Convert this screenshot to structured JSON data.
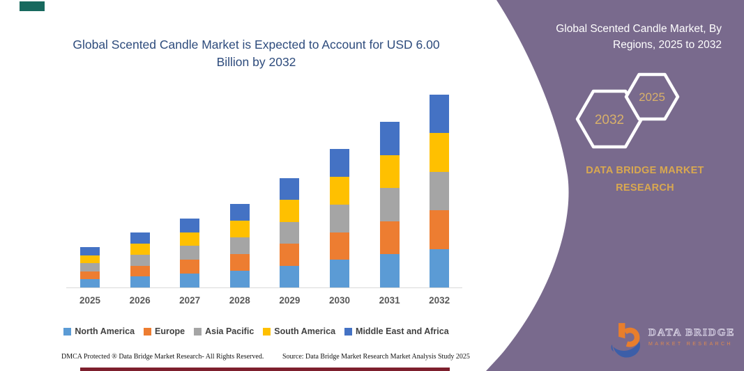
{
  "header": {
    "title": "Global Scented Candle Market is Expected to Account for USD 6.00 Billion by 2032"
  },
  "chart_data": {
    "type": "bar",
    "stacked": true,
    "title": "Global Scented Candle Market is Expected to Account for USD 6.00 Billion by 2032",
    "unit": "USD Billion",
    "categories": [
      "2025",
      "2026",
      "2027",
      "2028",
      "2029",
      "2030",
      "2031",
      "2032"
    ],
    "series": [
      {
        "name": "North America",
        "color": "#5B9BD5",
        "values": [
          0.25,
          0.34,
          0.43,
          0.52,
          0.68,
          0.86,
          1.03,
          1.2
        ]
      },
      {
        "name": "Europe",
        "color": "#ED7D31",
        "values": [
          0.25,
          0.34,
          0.43,
          0.52,
          0.68,
          0.86,
          1.03,
          1.2
        ]
      },
      {
        "name": "Asia Pacific",
        "color": "#A5A5A5",
        "values": [
          0.25,
          0.34,
          0.43,
          0.52,
          0.68,
          0.86,
          1.03,
          1.2
        ]
      },
      {
        "name": "South America",
        "color": "#FFC000",
        "values": [
          0.25,
          0.34,
          0.43,
          0.52,
          0.68,
          0.86,
          1.03,
          1.2
        ]
      },
      {
        "name": "Middle East and Africa",
        "color": "#4472C4",
        "values": [
          0.25,
          0.34,
          0.43,
          0.52,
          0.68,
          0.86,
          1.03,
          1.2
        ]
      }
    ],
    "totals": [
      1.25,
      1.7,
      2.15,
      2.6,
      3.4,
      4.3,
      5.15,
      6.0
    ],
    "ylim": [
      0,
      6.5
    ],
    "y_axis_visible": false,
    "gridlines": false,
    "legend_position": "bottom"
  },
  "side_panel": {
    "title": "Global Scented Candle Market, By Regions, 2025 to 2032",
    "hexagon_back_label": "2032",
    "hexagon_front_label": "2025",
    "brand_line1": "DATA BRIDGE MARKET",
    "brand_line2": "RESEARCH",
    "logo_name": "DATA BRIDGE",
    "logo_subtitle": "MARKET RESEARCH",
    "colors": {
      "background": "#796A8D",
      "gold": "#D9A850",
      "hexagon_text": "#D8B06A"
    }
  },
  "footer": {
    "dmca": "DMCA Protected ® Data Bridge Market Research-  All Rights Reserved.",
    "source": "Source: Data Bridge Market Research  Market Analysis Study 2025"
  }
}
